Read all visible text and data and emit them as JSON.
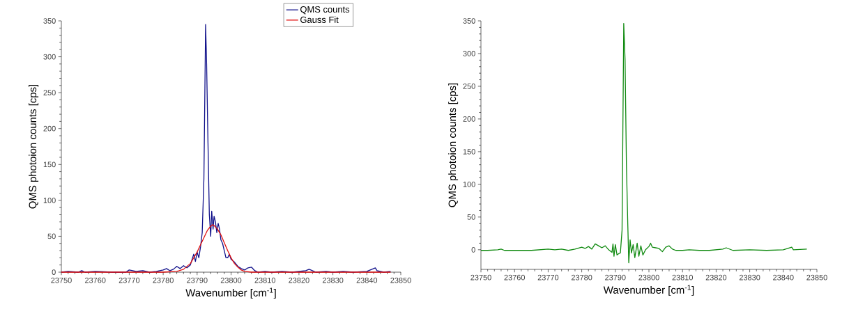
{
  "chart_data": [
    {
      "type": "line",
      "xlabel": "Wavenumber [cm$^{-1}$]",
      "ylabel": "QMS photoion counts [cps]",
      "xlim": [
        23750,
        23850
      ],
      "ylim": [
        0,
        350
      ],
      "xticks": [
        23750,
        23760,
        23770,
        23780,
        23790,
        23800,
        23810,
        23820,
        23830,
        23840,
        23850
      ],
      "yticks": [
        0,
        50,
        100,
        150,
        200,
        250,
        300,
        350
      ],
      "legend": "top right",
      "series": [
        {
          "name": "QMS counts",
          "color": "#10108a",
          "x": [
            23750,
            23752,
            23755,
            23756,
            23757,
            23760,
            23765,
            23769,
            23770,
            23772,
            23774,
            23776,
            23778,
            23780,
            23781,
            23782,
            23783,
            23784,
            23785,
            23786,
            23787,
            23788,
            23789,
            23789.5,
            23790,
            23790.5,
            23791,
            23791.5,
            23792,
            23792.5,
            23792.8,
            23793.2,
            23793.6,
            23794,
            23794.3,
            23794.7,
            23795,
            23795.4,
            23795.8,
            23796.2,
            23796.6,
            23797,
            23797.5,
            23798,
            23798.5,
            23799,
            23799.5,
            23800,
            23801,
            23802,
            23803,
            23804,
            23805,
            23806,
            23807,
            23808,
            23810,
            23812,
            23815,
            23818,
            23822,
            23823,
            23825,
            23828,
            23830,
            23833,
            23836,
            23840,
            23842.5,
            23843,
            23845,
            23847
          ],
          "values": [
            0,
            1,
            0,
            2,
            0,
            1,
            0,
            0,
            3,
            1,
            2,
            0,
            1,
            3,
            5,
            2,
            4,
            8,
            5,
            9,
            6,
            10,
            25,
            15,
            28,
            20,
            35,
            55,
            130,
            345,
            290,
            180,
            80,
            50,
            85,
            60,
            78,
            70,
            55,
            68,
            60,
            45,
            40,
            30,
            20,
            20,
            25,
            18,
            14,
            8,
            5,
            3,
            6,
            7,
            2,
            0,
            1,
            0,
            1,
            0,
            2,
            4,
            0,
            1,
            0,
            1,
            0,
            1,
            6,
            2,
            0,
            1
          ]
        },
        {
          "name": "Gauss Fit",
          "color": "#e01010",
          "x": [
            23750,
            23780,
            23784,
            23786,
            23788,
            23790,
            23791,
            23792,
            23793,
            23794,
            23794.5,
            23795,
            23796,
            23797,
            23798,
            23799,
            23800,
            23801,
            23802,
            23803,
            23804,
            23806,
            23847
          ],
          "values": [
            0,
            0,
            1,
            4,
            12,
            28,
            38,
            48,
            58,
            64,
            66,
            65,
            60,
            52,
            41,
            30,
            20,
            12,
            7,
            3,
            1,
            0,
            0
          ]
        }
      ]
    },
    {
      "type": "line",
      "xlabel": "Wavenumber [cm$^{-1}$]",
      "ylabel": "QMS photoion counts [cps]",
      "xlim": [
        23750,
        23850
      ],
      "ylim": [
        -30,
        350
      ],
      "xticks": [
        23750,
        23760,
        23770,
        23780,
        23790,
        23800,
        23810,
        23820,
        23830,
        23840,
        23850
      ],
      "yticks": [
        0,
        50,
        100,
        150,
        200,
        250,
        300,
        350
      ],
      "series": [
        {
          "color": "#108a10",
          "x": [
            23750,
            23752,
            23755,
            23756,
            23757,
            23760,
            23765,
            23770,
            23772,
            23774,
            23776,
            23778,
            23780,
            23781,
            23782,
            23783,
            23784,
            23785,
            23786,
            23787,
            23788,
            23789,
            23789.3,
            23789.6,
            23790,
            23790.5,
            23791,
            23791.5,
            23792,
            23792.5,
            23792.9,
            23793.3,
            23793.7,
            23794,
            23794.4,
            23794.8,
            23795.3,
            23795.8,
            23796.5,
            23797,
            23797.6,
            23798.2,
            23799,
            23800,
            23800.5,
            23801,
            23802,
            23803,
            23804,
            23805,
            23806,
            23807,
            23808,
            23810,
            23812,
            23815,
            23818,
            23822,
            23823,
            23825,
            23830,
            23835,
            23840,
            23842.5,
            23843,
            23847
          ],
          "values": [
            -1,
            -1,
            0,
            1,
            -1,
            -1,
            -1,
            1,
            0,
            1,
            -1,
            1,
            4,
            2,
            5,
            1,
            9,
            6,
            3,
            6,
            0,
            -4,
            9,
            -10,
            8,
            -8,
            -6,
            -5,
            30,
            346,
            290,
            130,
            40,
            -20,
            15,
            -5,
            8,
            -12,
            10,
            -10,
            6,
            -8,
            0,
            5,
            10,
            4,
            3,
            2,
            -3,
            4,
            6,
            1,
            -1,
            -1,
            0,
            -1,
            -1,
            1,
            3,
            -1,
            0,
            -1,
            0,
            4,
            0,
            1
          ]
        }
      ]
    }
  ]
}
